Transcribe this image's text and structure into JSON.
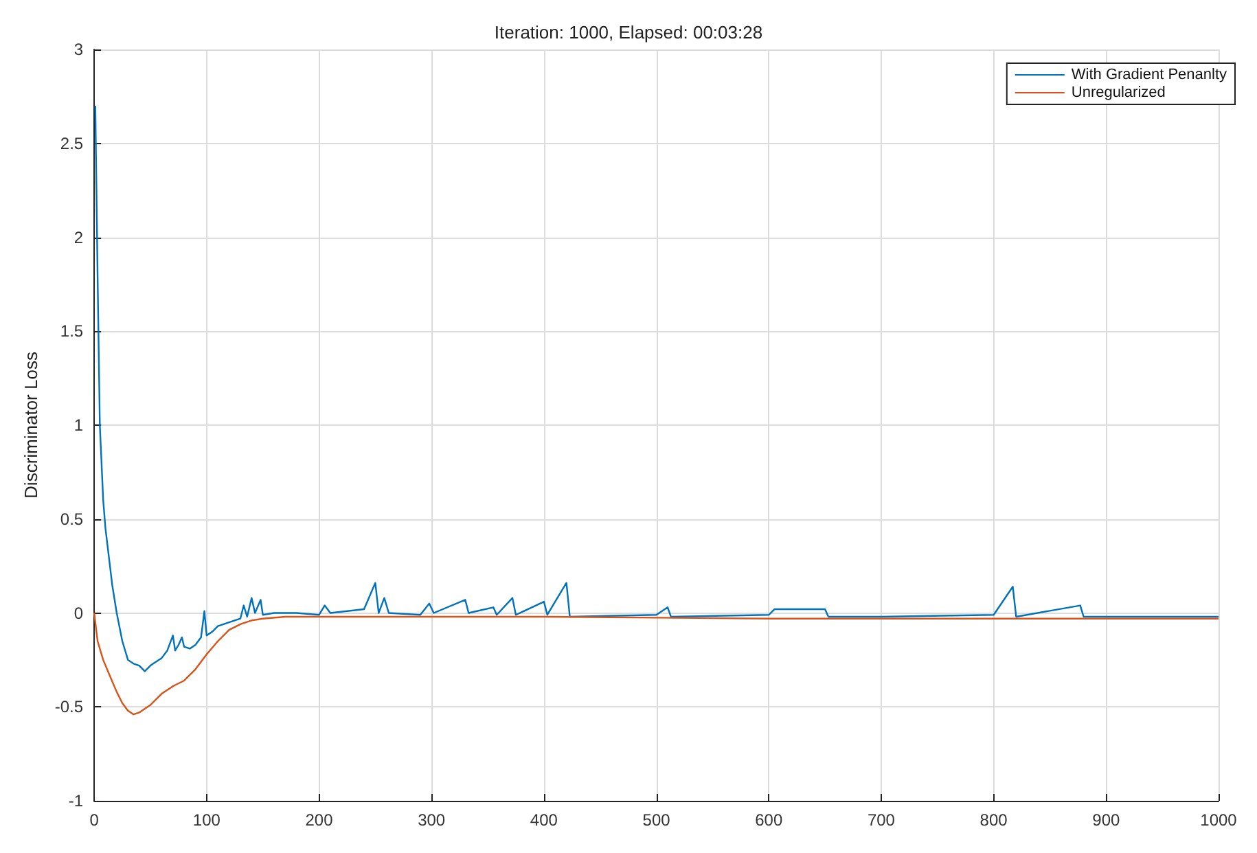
{
  "chart_data": {
    "type": "line",
    "title": "Iteration: 1000, Elapsed: 00:03:28",
    "ylabel": "Discriminator Loss",
    "xlim": [
      0,
      1000
    ],
    "xticks": [
      0,
      100,
      200,
      300,
      400,
      500,
      600,
      700,
      800,
      900,
      1000
    ],
    "ylim": [
      -1,
      3
    ],
    "yticks": [
      -1,
      -0.5,
      0,
      0.5,
      1,
      1.5,
      2,
      2.5,
      3
    ],
    "grid": true,
    "legend": "top right",
    "series": [
      {
        "name": "With Gradient Penanlty",
        "color": "#0072bd",
        "x": [
          1,
          3,
          5,
          8,
          10,
          13,
          16,
          20,
          25,
          30,
          35,
          40,
          45,
          50,
          55,
          60,
          65,
          70,
          72,
          75,
          78,
          80,
          85,
          90,
          95,
          98,
          100,
          105,
          110,
          115,
          120,
          125,
          130,
          133,
          136,
          140,
          143,
          148,
          150,
          160,
          180,
          200,
          205,
          210,
          240,
          250,
          253,
          258,
          262,
          290,
          298,
          302,
          330,
          333,
          355,
          358,
          372,
          375,
          400,
          403,
          420,
          423,
          500,
          510,
          513,
          600,
          605,
          650,
          653,
          700,
          800,
          817,
          820,
          877,
          880,
          1000
        ],
        "values": [
          2.7,
          1.8,
          1.0,
          0.6,
          0.45,
          0.3,
          0.15,
          0,
          -0.15,
          -0.25,
          -0.27,
          -0.28,
          -0.31,
          -0.28,
          -0.26,
          -0.24,
          -0.2,
          -0.12,
          -0.2,
          -0.17,
          -0.13,
          -0.18,
          -0.19,
          -0.17,
          -0.13,
          0.01,
          -0.12,
          -0.1,
          -0.07,
          -0.06,
          -0.05,
          -0.04,
          -0.03,
          0.04,
          -0.02,
          0.08,
          0,
          0.07,
          -0.01,
          0,
          0,
          -0.01,
          0.04,
          0,
          0.02,
          0.16,
          0,
          0.08,
          0,
          -0.01,
          0.05,
          0,
          0.07,
          0,
          0.03,
          -0.01,
          0.08,
          -0.01,
          0.06,
          -0.01,
          0.16,
          -0.02,
          -0.01,
          0.03,
          -0.02,
          -0.01,
          0.02,
          0.02,
          -0.02,
          -0.02,
          -0.01,
          0.14,
          -0.02,
          0.04,
          -0.02,
          -0.02
        ]
      },
      {
        "name": "Unregularized",
        "color": "#d95319",
        "x": [
          0,
          3,
          8,
          15,
          20,
          25,
          30,
          35,
          40,
          50,
          60,
          70,
          80,
          90,
          100,
          110,
          120,
          130,
          140,
          150,
          170,
          200,
          400,
          600,
          800,
          1000
        ],
        "values": [
          0,
          -0.15,
          -0.25,
          -0.35,
          -0.42,
          -0.48,
          -0.52,
          -0.54,
          -0.53,
          -0.49,
          -0.43,
          -0.39,
          -0.36,
          -0.3,
          -0.22,
          -0.15,
          -0.09,
          -0.06,
          -0.04,
          -0.03,
          -0.02,
          -0.02,
          -0.02,
          -0.03,
          -0.03,
          -0.03
        ]
      }
    ]
  }
}
